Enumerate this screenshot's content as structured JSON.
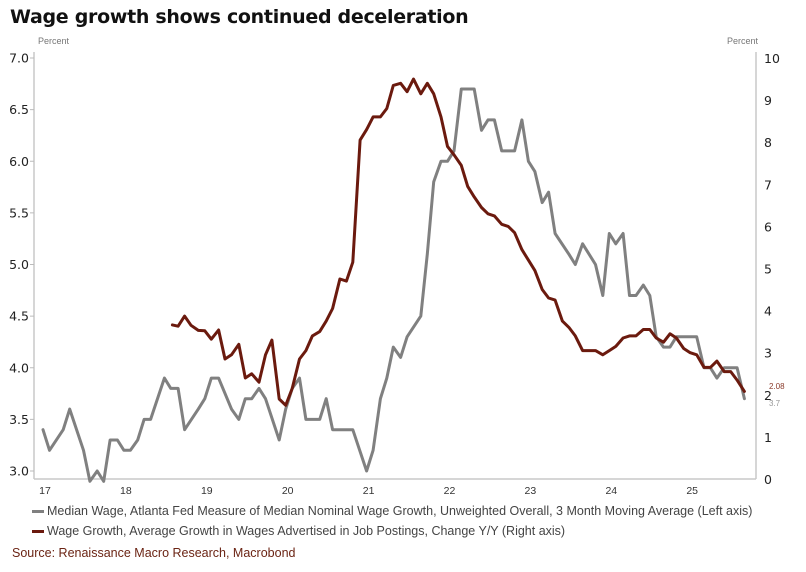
{
  "title": "Wage growth shows continued deceleration",
  "source": "Source: Renaissance Macro Research, Macrobond",
  "chart_data": {
    "type": "line",
    "title": "Wage growth shows continued deceleration",
    "xlabel": "",
    "x_ticks": [
      "17",
      "18",
      "19",
      "20",
      "21",
      "22",
      "23",
      "24",
      "25"
    ],
    "x_range": [
      2016.95,
      2025.6
    ],
    "left_axis": {
      "label": "Percent",
      "ylim": [
        3.0,
        7.0
      ],
      "ticks": [
        "3.0",
        "3.5",
        "4.0",
        "4.5",
        "5.0",
        "5.5",
        "6.0",
        "6.5",
        "7.0"
      ]
    },
    "right_axis": {
      "label": "Percent",
      "ylim": [
        0,
        10
      ],
      "ticks": [
        "0",
        "1",
        "2",
        "3",
        "4",
        "5",
        "6",
        "7",
        "8",
        "9",
        "10"
      ]
    },
    "grid": false,
    "legend_position": "bottom",
    "series": [
      {
        "name": "Median Wage, Atlanta Fed Measure of Median Nominal Wage Growth, Unweighted Overall, 3 Month Moving Average (Left axis)",
        "axis": "left",
        "color": "#808080",
        "end_label": "3.7",
        "points": [
          [
            2017.0,
            3.4
          ],
          [
            2017.08,
            3.2
          ],
          [
            2017.25,
            3.4
          ],
          [
            2017.33,
            3.6
          ],
          [
            2017.5,
            3.2
          ],
          [
            2017.58,
            2.9
          ],
          [
            2017.67,
            3.0
          ],
          [
            2017.75,
            2.9
          ],
          [
            2017.83,
            3.3
          ],
          [
            2017.92,
            3.3
          ],
          [
            2018.0,
            3.2
          ],
          [
            2018.08,
            3.2
          ],
          [
            2018.17,
            3.3
          ],
          [
            2018.25,
            3.5
          ],
          [
            2018.33,
            3.5
          ],
          [
            2018.5,
            3.9
          ],
          [
            2018.58,
            3.8
          ],
          [
            2018.67,
            3.8
          ],
          [
            2018.75,
            3.4
          ],
          [
            2018.92,
            3.6
          ],
          [
            2019.0,
            3.7
          ],
          [
            2019.08,
            3.9
          ],
          [
            2019.17,
            3.9
          ],
          [
            2019.33,
            3.6
          ],
          [
            2019.42,
            3.5
          ],
          [
            2019.5,
            3.7
          ],
          [
            2019.58,
            3.7
          ],
          [
            2019.67,
            3.8
          ],
          [
            2019.75,
            3.7
          ],
          [
            2019.92,
            3.3
          ],
          [
            2020.0,
            3.6
          ],
          [
            2020.08,
            3.8
          ],
          [
            2020.17,
            3.9
          ],
          [
            2020.25,
            3.5
          ],
          [
            2020.42,
            3.5
          ],
          [
            2020.5,
            3.7
          ],
          [
            2020.58,
            3.4
          ],
          [
            2020.83,
            3.4
          ],
          [
            2021.0,
            3.0
          ],
          [
            2021.08,
            3.2
          ],
          [
            2021.17,
            3.7
          ],
          [
            2021.25,
            3.9
          ],
          [
            2021.33,
            4.2
          ],
          [
            2021.42,
            4.1
          ],
          [
            2021.5,
            4.3
          ],
          [
            2021.67,
            4.5
          ],
          [
            2021.75,
            5.1
          ],
          [
            2021.83,
            5.8
          ],
          [
            2021.92,
            6.0
          ],
          [
            2022.0,
            6.0
          ],
          [
            2022.08,
            6.1
          ],
          [
            2022.17,
            6.7
          ],
          [
            2022.33,
            6.7
          ],
          [
            2022.42,
            6.3
          ],
          [
            2022.5,
            6.4
          ],
          [
            2022.58,
            6.4
          ],
          [
            2022.67,
            6.1
          ],
          [
            2022.83,
            6.1
          ],
          [
            2022.92,
            6.4
          ],
          [
            2023.0,
            6.0
          ],
          [
            2023.08,
            5.9
          ],
          [
            2023.17,
            5.6
          ],
          [
            2023.25,
            5.7
          ],
          [
            2023.33,
            5.3
          ],
          [
            2023.5,
            5.1
          ],
          [
            2023.58,
            5.0
          ],
          [
            2023.67,
            5.2
          ],
          [
            2023.83,
            5.0
          ],
          [
            2023.92,
            4.7
          ],
          [
            2024.0,
            5.3
          ],
          [
            2024.08,
            5.2
          ],
          [
            2024.17,
            5.3
          ],
          [
            2024.25,
            4.7
          ],
          [
            2024.33,
            4.7
          ],
          [
            2024.42,
            4.8
          ],
          [
            2024.5,
            4.7
          ],
          [
            2024.58,
            4.3
          ],
          [
            2024.67,
            4.2
          ],
          [
            2024.75,
            4.2
          ],
          [
            2024.83,
            4.3
          ],
          [
            2025.08,
            4.3
          ],
          [
            2025.17,
            4.0
          ],
          [
            2025.25,
            4.0
          ],
          [
            2025.33,
            3.9
          ],
          [
            2025.42,
            4.0
          ],
          [
            2025.58,
            4.0
          ],
          [
            2025.67,
            3.7
          ]
        ]
      },
      {
        "name": "Wage Growth, Average Growth in Wages Advertised in Job Postings, Change Y/Y (Right axis)",
        "axis": "right",
        "color": "#6b1a0e",
        "end_label": "2.08",
        "points": [
          [
            2018.6,
            3.66
          ],
          [
            2018.67,
            3.63
          ],
          [
            2018.75,
            3.87
          ],
          [
            2018.83,
            3.65
          ],
          [
            2018.92,
            3.53
          ],
          [
            2019.0,
            3.52
          ],
          [
            2019.08,
            3.32
          ],
          [
            2019.17,
            3.54
          ],
          [
            2019.25,
            2.85
          ],
          [
            2019.33,
            2.95
          ],
          [
            2019.42,
            3.2
          ],
          [
            2019.5,
            2.4
          ],
          [
            2019.58,
            2.5
          ],
          [
            2019.67,
            2.3
          ],
          [
            2019.75,
            2.95
          ],
          [
            2019.83,
            3.3
          ],
          [
            2019.92,
            1.9
          ],
          [
            2020.0,
            1.75
          ],
          [
            2020.08,
            2.15
          ],
          [
            2020.17,
            2.85
          ],
          [
            2020.25,
            3.05
          ],
          [
            2020.33,
            3.4
          ],
          [
            2020.42,
            3.5
          ],
          [
            2020.5,
            3.75
          ],
          [
            2020.58,
            4.05
          ],
          [
            2020.67,
            4.75
          ],
          [
            2020.75,
            4.7
          ],
          [
            2020.83,
            5.15
          ],
          [
            2020.92,
            8.05
          ],
          [
            2021.0,
            8.3
          ],
          [
            2021.08,
            8.6
          ],
          [
            2021.17,
            8.6
          ],
          [
            2021.25,
            8.8
          ],
          [
            2021.33,
            9.35
          ],
          [
            2021.42,
            9.4
          ],
          [
            2021.5,
            9.2
          ],
          [
            2021.58,
            9.5
          ],
          [
            2021.67,
            9.15
          ],
          [
            2021.75,
            9.4
          ],
          [
            2021.83,
            9.15
          ],
          [
            2021.92,
            8.6
          ],
          [
            2022.0,
            7.9
          ],
          [
            2022.08,
            7.7
          ],
          [
            2022.17,
            7.45
          ],
          [
            2022.25,
            6.95
          ],
          [
            2022.33,
            6.7
          ],
          [
            2022.42,
            6.45
          ],
          [
            2022.5,
            6.3
          ],
          [
            2022.58,
            6.25
          ],
          [
            2022.67,
            6.05
          ],
          [
            2022.75,
            6.0
          ],
          [
            2022.83,
            5.85
          ],
          [
            2022.92,
            5.45
          ],
          [
            2023.0,
            5.2
          ],
          [
            2023.08,
            4.95
          ],
          [
            2023.17,
            4.5
          ],
          [
            2023.25,
            4.3
          ],
          [
            2023.33,
            4.25
          ],
          [
            2023.42,
            3.75
          ],
          [
            2023.5,
            3.6
          ],
          [
            2023.58,
            3.4
          ],
          [
            2023.67,
            3.05
          ],
          [
            2023.83,
            3.05
          ],
          [
            2023.92,
            2.95
          ],
          [
            2024.0,
            3.05
          ],
          [
            2024.08,
            3.15
          ],
          [
            2024.17,
            3.35
          ],
          [
            2024.25,
            3.4
          ],
          [
            2024.33,
            3.4
          ],
          [
            2024.42,
            3.55
          ],
          [
            2024.5,
            3.55
          ],
          [
            2024.58,
            3.35
          ],
          [
            2024.67,
            3.25
          ],
          [
            2024.75,
            3.45
          ],
          [
            2024.83,
            3.35
          ],
          [
            2024.92,
            3.1
          ],
          [
            2025.0,
            3.0
          ],
          [
            2025.08,
            2.95
          ],
          [
            2025.17,
            2.65
          ],
          [
            2025.25,
            2.65
          ],
          [
            2025.33,
            2.8
          ],
          [
            2025.42,
            2.55
          ],
          [
            2025.5,
            2.55
          ],
          [
            2025.58,
            2.35
          ],
          [
            2025.67,
            2.08
          ]
        ]
      }
    ]
  },
  "legend": [
    {
      "label": "Median Wage, Atlanta Fed Measure of Median Nominal Wage Growth, Unweighted Overall, 3 Month Moving Average (Left axis)",
      "color": "#808080"
    },
    {
      "label": "Wage Growth, Average Growth in Wages Advertised in Job Postings, Change Y/Y (Right axis)",
      "color": "#6b1a0e"
    }
  ]
}
